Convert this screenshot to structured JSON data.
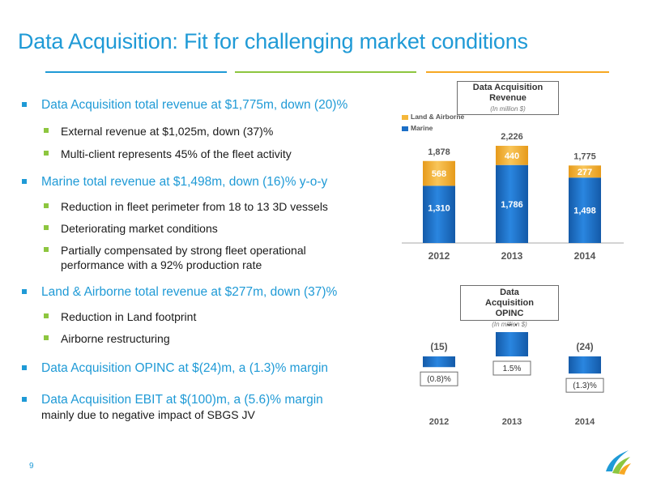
{
  "title": "Data Acquisition: Fit for challenging market conditions",
  "page_number": "9",
  "colors": {
    "accent_blue": "#1f9ad6",
    "accent_green": "#8dc63f",
    "accent_orange": "#f7a823",
    "marine": "#1b6fc7",
    "land_airborne": "#f5b73a"
  },
  "bullets": [
    {
      "text": "Data Acquisition total revenue at $1,775m, down (20)%",
      "sub": [
        "External revenue at $1,025m, down (37)%",
        "Multi-client represents 45% of the fleet activity"
      ]
    },
    {
      "text": "Marine total revenue at $1,498m, down (16)% y-o-y",
      "sub": [
        "Reduction in fleet perimeter from 18 to 13 3D vessels",
        "Deteriorating market conditions",
        "Partially compensated by strong fleet operational performance with a 92% production rate"
      ]
    },
    {
      "text": "Land & Airborne total revenue at $277m, down (37)%",
      "sub": [
        "Reduction in Land footprint",
        "Airborne restructuring"
      ]
    },
    {
      "text": "Data Acquisition OPINC at $(24)m, a (1.3)% margin",
      "sub": []
    },
    {
      "text": "Data Acquisition EBIT at $(100)m, a (5.6)% margin",
      "note": "mainly due to negative impact of SBGS JV",
      "sub": []
    }
  ],
  "chart_data": [
    {
      "type": "bar",
      "title": "Data Acquisition Revenue",
      "subtitle": "(In million $)",
      "stacked": true,
      "categories": [
        "2012",
        "2013",
        "2014"
      ],
      "series": [
        {
          "name": "Marine",
          "values": [
            1310,
            1786,
            1498
          ],
          "labels": [
            "1,310",
            "1,786",
            "1,498"
          ]
        },
        {
          "name": "Land & Airborne",
          "values": [
            568,
            440,
            277
          ],
          "labels": [
            "568",
            "440",
            "277"
          ]
        }
      ],
      "totals": [
        "1,878",
        "2,226",
        "1,775"
      ],
      "legend": [
        "Land & Airborne",
        "Marine"
      ],
      "legend_position": "top-left"
    },
    {
      "type": "bar",
      "title": "Data Acquisition OPINC",
      "subtitle": "(In million $)",
      "categories": [
        "2012",
        "2013",
        "2014"
      ],
      "values": [
        -15,
        34,
        -24
      ],
      "value_labels": [
        "(15)",
        "34",
        "(24)"
      ],
      "margins": [
        "(0.8)%",
        "1.5%",
        "(1.3)%"
      ]
    }
  ]
}
